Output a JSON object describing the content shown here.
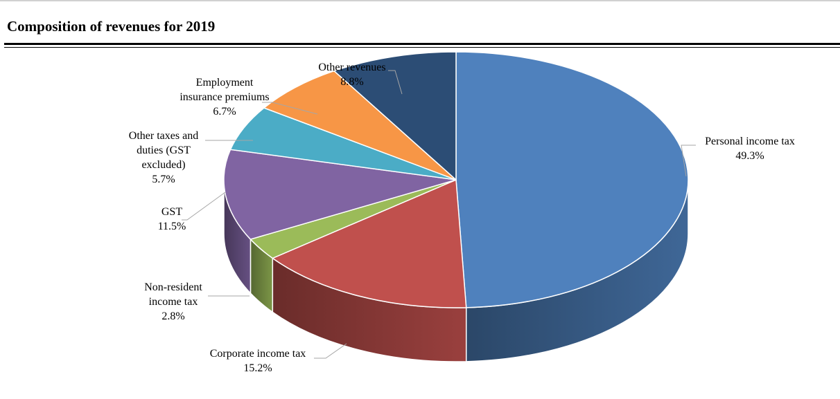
{
  "header": {
    "title": "Composition of revenues for 2019"
  },
  "chart_data": {
    "type": "pie",
    "title": "Composition of revenues for 2019",
    "slices": [
      {
        "name": "Personal income tax",
        "lines": [
          "Personal income tax"
        ],
        "value": 49.3,
        "value_label": "49.3%",
        "color": "#4f81bd"
      },
      {
        "name": "Corporate income tax",
        "lines": [
          "Corporate income tax"
        ],
        "value": 15.2,
        "value_label": "15.2%",
        "color": "#c0504d"
      },
      {
        "name": "Non-resident income tax",
        "lines": [
          "Non-resident",
          "income tax"
        ],
        "value": 2.8,
        "value_label": "2.8%",
        "color": "#9bbb59"
      },
      {
        "name": "GST",
        "lines": [
          "GST"
        ],
        "value": 11.5,
        "value_label": "11.5%",
        "color": "#8064a2"
      },
      {
        "name": "Other taxes and duties (GST excluded)",
        "lines": [
          "Other taxes and",
          "duties (GST",
          "excluded)"
        ],
        "value": 5.7,
        "value_label": "5.7%",
        "color": "#4bacc6"
      },
      {
        "name": "Employment insurance premiums",
        "lines": [
          "Employment",
          "insurance premiums"
        ],
        "value": 6.7,
        "value_label": "6.7%",
        "color": "#f79646"
      },
      {
        "name": "Other revenues",
        "lines": [
          "Other revenues"
        ],
        "value": 8.8,
        "value_label": "8.8%",
        "color": "#2c4d75"
      }
    ],
    "style": "3d-pie",
    "legend": "none"
  }
}
